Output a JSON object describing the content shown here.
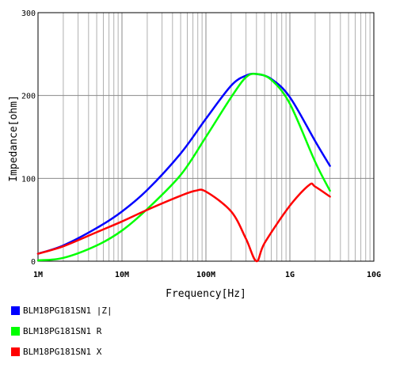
{
  "chart_data": {
    "type": "line",
    "title": "",
    "xlabel": "Frequency[Hz]",
    "ylabel": "Impedance[ohm]",
    "xscale": "log",
    "xlim": [
      1000000,
      10000000000
    ],
    "ylim": [
      0,
      300
    ],
    "grid": true,
    "legend_position": "bottom-left",
    "x_ticks": [
      {
        "value": 1000000,
        "label": "1M"
      },
      {
        "value": 10000000,
        "label": "10M"
      },
      {
        "value": 100000000,
        "label": "100M"
      },
      {
        "value": 1000000000,
        "label": "1G"
      },
      {
        "value": 10000000000,
        "label": "10G"
      }
    ],
    "y_ticks": [
      {
        "value": 0,
        "label": "0"
      },
      {
        "value": 100,
        "label": "100"
      },
      {
        "value": 200,
        "label": "200"
      },
      {
        "value": 300,
        "label": "300"
      }
    ],
    "series": [
      {
        "name": "BLM18PG181SN1 |Z|",
        "color": "#0000ff",
        "x": [
          1000000,
          2000000,
          5000000,
          10000000,
          20000000,
          50000000,
          100000000,
          200000000,
          300000000,
          400000000,
          600000000,
          1000000000,
          2000000000,
          3000000000
        ],
        "y": [
          9,
          19,
          40,
          60,
          86,
          130,
          172,
          212,
          224,
          226,
          220,
          198,
          145,
          115
        ]
      },
      {
        "name": "BLM18PG181SN1 R",
        "color": "#00ff00",
        "x": [
          1000000,
          2000000,
          5000000,
          10000000,
          20000000,
          50000000,
          100000000,
          200000000,
          300000000,
          400000000,
          600000000,
          1000000000,
          2000000000,
          3000000000
        ],
        "y": [
          1,
          4,
          19,
          37,
          63,
          104,
          150,
          198,
          222,
          226,
          219,
          190,
          120,
          85
        ]
      },
      {
        "name": "BLM18PG181SN1 X",
        "color": "#ff0000",
        "x": [
          1000000,
          2000000,
          5000000,
          10000000,
          20000000,
          50000000,
          75000000,
          100000000,
          200000000,
          300000000,
          400000000,
          500000000,
          1000000000,
          1700000000,
          2000000000,
          3000000000
        ],
        "y": [
          9,
          18,
          35,
          48,
          62,
          79,
          85,
          84,
          60,
          27,
          0,
          22,
          67,
          92,
          90,
          78
        ]
      }
    ]
  }
}
